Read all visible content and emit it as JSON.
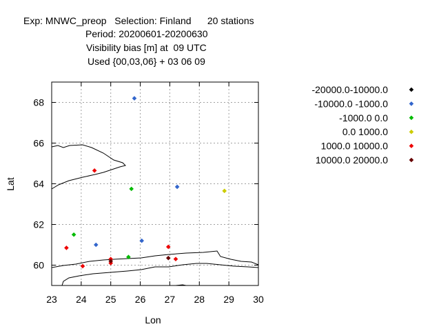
{
  "title_lines": [
    "Exp: MNWC_preop   Selection: Finland      20 stations",
    "Period: 20200601-20200630",
    "Visibility bias [m] at  09 UTC",
    "Used {00,03,06} + 03 06 09"
  ],
  "chart_data": {
    "type": "scatter",
    "xlabel": "Lon",
    "ylabel": "Lat",
    "xlim": [
      23,
      30
    ],
    "ylim": [
      59,
      69
    ],
    "xticks": [
      23,
      24,
      25,
      26,
      27,
      28,
      29,
      30
    ],
    "yticks": [
      60,
      62,
      64,
      66,
      68
    ],
    "grid": true,
    "legend_placement": "right",
    "series": [
      {
        "name": "-20000.0-10000.0",
        "color": "#000000",
        "points": []
      },
      {
        "name": "-10000.0 -1000.0",
        "color": "#3366cc",
        "points": [
          [
            25.8,
            68.2
          ],
          [
            27.25,
            63.85
          ],
          [
            24.5,
            61.0
          ],
          [
            26.05,
            61.2
          ]
        ]
      },
      {
        "name": "-1000.0 0.0",
        "color": "#00bb00",
        "points": [
          [
            25.7,
            63.75
          ],
          [
            23.75,
            61.5
          ],
          [
            25.6,
            60.4
          ]
        ]
      },
      {
        "name": "0.0 1000.0",
        "color": "#cccc00",
        "points": [
          [
            28.85,
            63.65
          ]
        ]
      },
      {
        "name": "1000.0 10000.0",
        "color": "#ee0000",
        "points": [
          [
            24.45,
            64.65
          ],
          [
            23.5,
            60.85
          ],
          [
            24.05,
            59.95
          ],
          [
            25.0,
            60.3
          ],
          [
            25.0,
            60.1
          ],
          [
            26.95,
            60.9
          ],
          [
            27.2,
            60.3
          ]
        ]
      },
      {
        "name": "10000.0 20000.0",
        "color": "#660000",
        "points": [
          [
            25.0,
            60.2
          ],
          [
            26.95,
            60.35
          ]
        ]
      }
    ]
  }
}
